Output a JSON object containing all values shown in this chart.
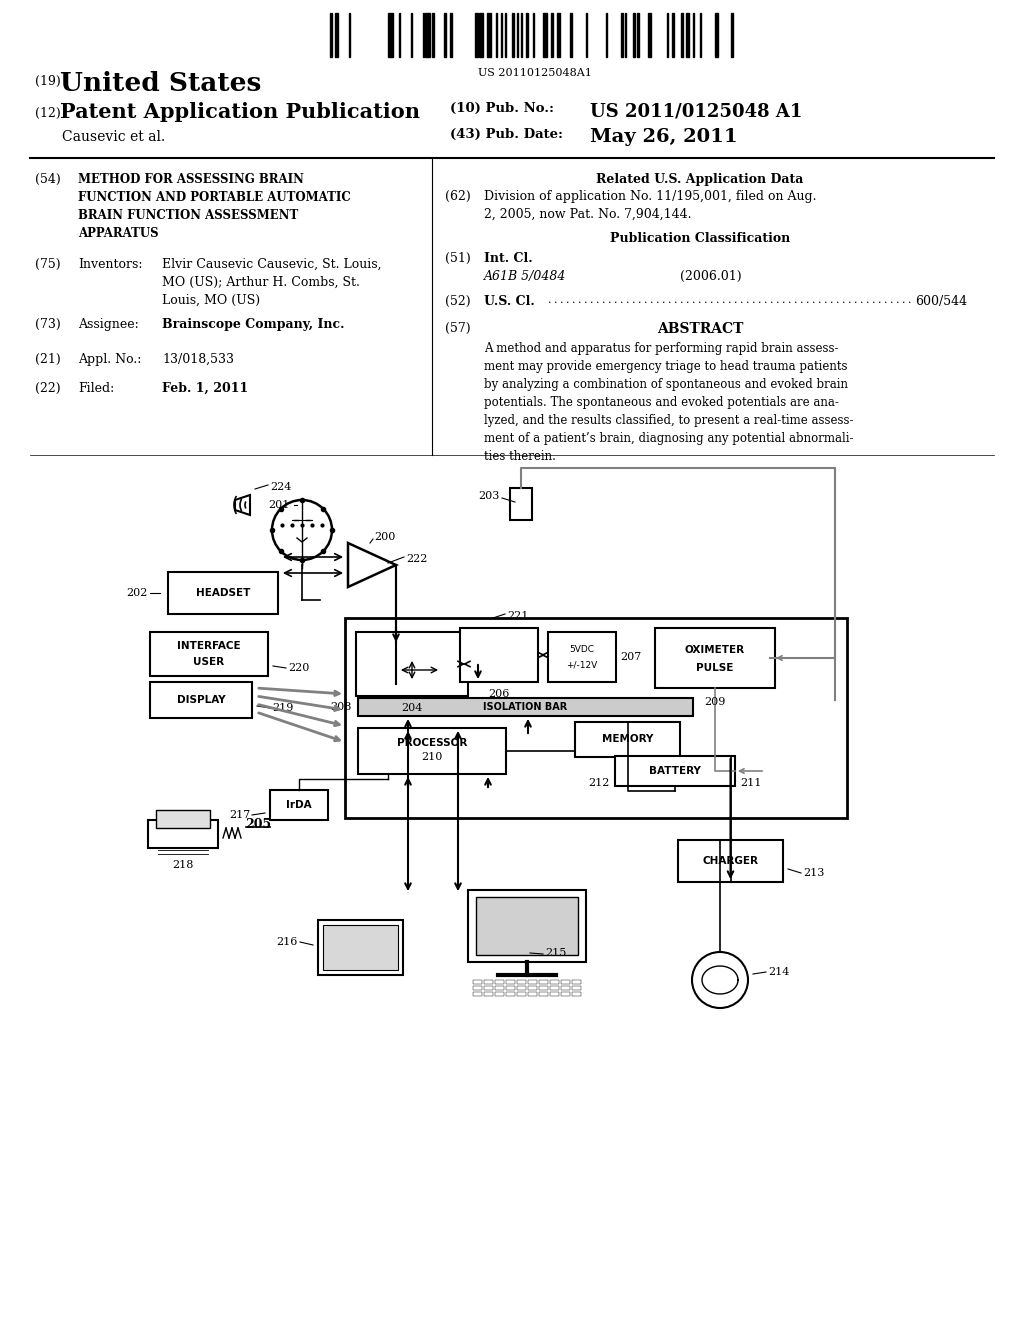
{
  "background_color": "#ffffff",
  "barcode_text": "US 20110125048A1",
  "patent_number": "US 2011/0125048 A1",
  "pub_date": "May 26, 2011",
  "title_country": "United States",
  "app_type": "Patent Application Publication",
  "applicant": "Causevic et al.",
  "field54_title": "METHOD FOR ASSESSING BRAIN\nFUNCTION AND PORTABLE AUTOMATIC\nBRAIN FUNCTION ASSESSMENT\nAPPARATUS",
  "field75_content": "Elvir Causevic Causevic, St. Louis,\nMO (US); Arthur H. Combs, St.\nLouis, MO (US)",
  "field73_content": "Brainscope Company, Inc.",
  "field21_content": "13/018,533",
  "field22_content": "Feb. 1, 2011",
  "field62_content": "Division of application No. 11/195,001, filed on Aug.\n2, 2005, now Pat. No. 7,904,144.",
  "field51_class": "A61B 5/0484",
  "field51_year": "(2006.01)",
  "field52_content": "600/544",
  "abstract_text": "A method and apparatus for performing rapid brain assess-\nment may provide emergency triage to head trauma patients\nby analyzing a combination of spontaneous and evoked brain\npotentials. The spontaneous and evoked potentials are ana-\nlyzed, and the results classified, to present a real-time assess-\nment of a patient’s brain, diagnosing any potential abnormali-\nties therein."
}
